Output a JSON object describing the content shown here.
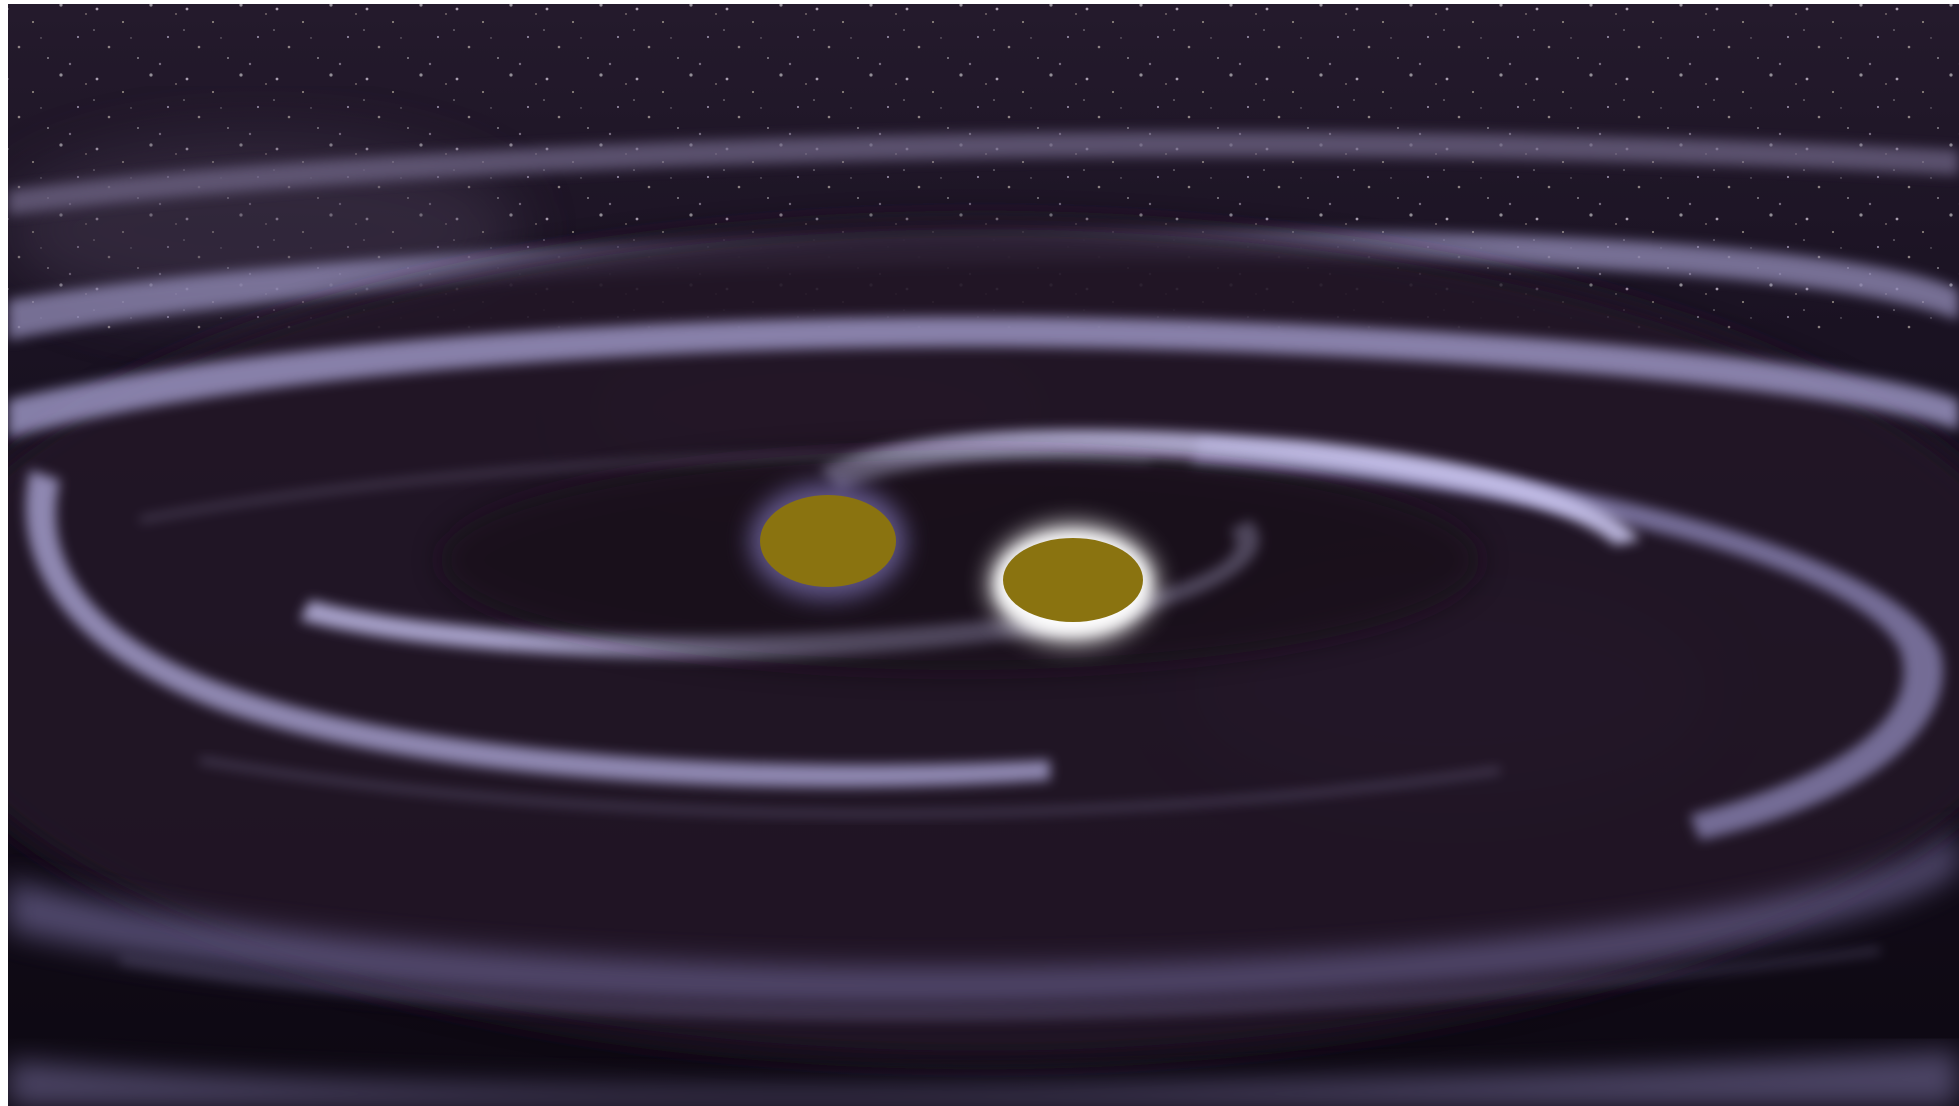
{
  "scene": {
    "subject": "binary-star-merger-with-gravitational-wave-ripples",
    "colors": {
      "frame": "#ffffff",
      "space": "#0c0710",
      "nebula": "#2b1d35",
      "ripple_highlight": "#b7b3ec",
      "ripple_mid": "#5b537a",
      "ripple_shadow": "#140d1a",
      "star_body": "#8a7310",
      "star_glow": "#ffffff",
      "star_left_glow": "#9e92e6"
    },
    "objects": [
      {
        "name": "star-left",
        "shape": "circle",
        "color": "#8a7310"
      },
      {
        "name": "star-right",
        "shape": "circle",
        "color": "#8a7310"
      }
    ]
  }
}
